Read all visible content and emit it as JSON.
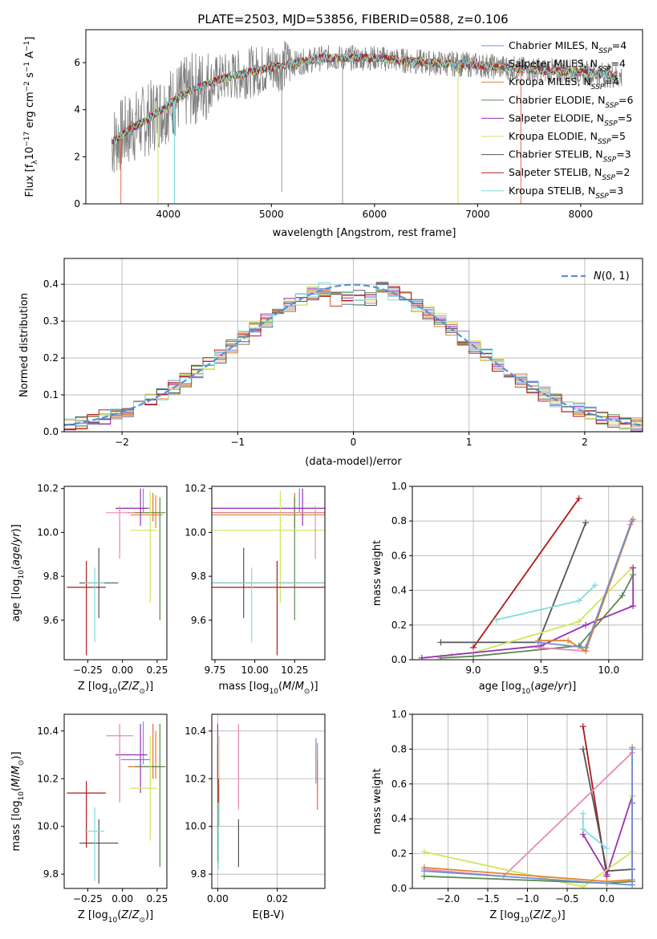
{
  "figure": {
    "title": "PLATE=2503, MJD=53856, FIBERID=0588, z=0.106"
  },
  "colors": {
    "Chabrier MILES": "#6f8fd8",
    "Salpeter MILES": "#e86b42",
    "Kroupa MILES": "#e0862a",
    "Chabrier ELODIE": "#5a8a4e",
    "Salpeter ELODIE": "#9b2fb5",
    "Kroupa ELODIE": "#cfe65a",
    "Chabrier STELIB": "#555555",
    "Salpeter STELIB": "#b01818",
    "Kroupa STELIB": "#7fdcdc",
    "pink": "#e888b8",
    "data_grey": "#808080",
    "normal": "#5b8fd6"
  },
  "chart_data": [
    {
      "id": "spectrum",
      "type": "line",
      "title": "PLATE=2503, MJD=53856, FIBERID=0588, z=0.106",
      "xlabel": "wavelength [Angstrom, rest frame]",
      "ylabel": "Flux [f_λ 10^-17 erg cm^-2 s^-1 A^-1]",
      "xlim": [
        3200,
        8600
      ],
      "ylim": [
        0,
        7.4
      ],
      "xticks": [
        "4000",
        "5000",
        "6000",
        "7000",
        "8000"
      ],
      "yticks": [
        "0",
        "2",
        "4",
        "6"
      ],
      "grid": false,
      "legend_position": "right",
      "legend": [
        {
          "name": "Chabrier MILES",
          "sub": "SSP",
          "n": "=4"
        },
        {
          "name": "Salpeter MILES",
          "sub": "SSP",
          "n": "=4"
        },
        {
          "name": "Kroupa MILES",
          "sub": "SSP",
          "n": "=4"
        },
        {
          "name": "Chabrier ELODIE",
          "sub": "SSP",
          "n": "=6"
        },
        {
          "name": "Salpeter ELODIE",
          "sub": "SSP",
          "n": "=5"
        },
        {
          "name": "Kroupa ELODIE",
          "sub": "SSP",
          "n": "=5"
        },
        {
          "name": "Chabrier STELIB",
          "sub": "SSP",
          "n": "=3"
        },
        {
          "name": "Salpeter STELIB",
          "sub": "SSP",
          "n": "=2"
        },
        {
          "name": "Kroupa STELIB",
          "sub": "SSP",
          "n": "=3"
        }
      ],
      "continuum": [
        [
          3450,
          2.6
        ],
        [
          3600,
          3.1
        ],
        [
          3800,
          3.6
        ],
        [
          4000,
          4.2
        ],
        [
          4200,
          4.8
        ],
        [
          4500,
          5.3
        ],
        [
          5000,
          5.8
        ],
        [
          5500,
          6.2
        ],
        [
          6000,
          6.2
        ],
        [
          6500,
          6.0
        ],
        [
          7000,
          5.9
        ],
        [
          7500,
          5.7
        ],
        [
          8000,
          5.6
        ],
        [
          8400,
          5.4
        ]
      ],
      "model_window": [
        3450,
        8400
      ],
      "spikes": [
        [
          3540,
          0
        ],
        [
          3900,
          0
        ],
        [
          4060,
          0
        ],
        [
          6810,
          0
        ],
        [
          7420,
          0
        ]
      ]
    },
    {
      "id": "residual-histogram",
      "type": "histogram",
      "xlabel": "(data-model)/error",
      "ylabel": "Normed distribution",
      "xlim": [
        -2.5,
        2.5
      ],
      "ylim": [
        0,
        0.47
      ],
      "xticks": [
        "−2",
        "−1",
        "0",
        "1",
        "2"
      ],
      "yticks": [
        "0.0",
        "0.1",
        "0.2",
        "0.3",
        "0.4"
      ],
      "grid": true,
      "legend_position": "top-right",
      "normal_label": "N(0, 1)",
      "bin_width": 0.1
    },
    {
      "id": "age-vs-Z",
      "type": "errorbar",
      "xlabel": "Z [log10(Z/Z⊙)]",
      "ylabel": "age [log10(age/yr)]",
      "xlim": [
        -0.42,
        0.32
      ],
      "ylim": [
        9.42,
        10.21
      ],
      "xticks": [
        "−0.25",
        "0.00",
        "0.25"
      ],
      "xtick_values": [
        -0.25,
        0.0,
        0.25
      ],
      "yticks": [
        "9.6",
        "9.8",
        "10.0",
        "10.2"
      ],
      "ytick_values": [
        9.6,
        9.8,
        10.0,
        10.2
      ],
      "grid": false
    },
    {
      "id": "age-vs-mass",
      "type": "errorbar",
      "xlabel": "mass [log10(M/M⊙)]",
      "ylabel": "",
      "xlim": [
        9.73,
        10.44
      ],
      "ylim": [
        9.42,
        10.21
      ],
      "xticks": [
        "9.75",
        "10.00",
        "10.25"
      ],
      "xtick_values": [
        9.75,
        10.0,
        10.25
      ],
      "yticks": [
        "9.6",
        "9.8",
        "10.0",
        "10.2"
      ],
      "ytick_values": [
        9.6,
        9.8,
        10.0,
        10.2
      ],
      "grid": false
    },
    {
      "id": "weight-vs-age",
      "type": "line",
      "xlabel": "age [log10(age/yr)]",
      "ylabel": "mass weight",
      "xlim": [
        8.55,
        10.25
      ],
      "ylim": [
        0,
        1.0
      ],
      "xticks": [
        "9.0",
        "9.5",
        "10.0"
      ],
      "xtick_values": [
        9.0,
        9.5,
        10.0
      ],
      "yticks": [
        "0.0",
        "0.2",
        "0.4",
        "0.6",
        "0.8",
        "1.0"
      ],
      "ytick_values": [
        0,
        0.2,
        0.4,
        0.6,
        0.8,
        1.0
      ],
      "grid": true
    },
    {
      "id": "mass-vs-Z",
      "type": "errorbar",
      "xlabel": "Z [log10(Z/Z⊙)]",
      "ylabel": "mass [log10(M/M⊙)]",
      "xlim": [
        -0.42,
        0.32
      ],
      "ylim": [
        9.74,
        10.47
      ],
      "xticks": [
        "−0.25",
        "0.00",
        "0.25"
      ],
      "xtick_values": [
        -0.25,
        0.0,
        0.25
      ],
      "yticks": [
        "9.8",
        "10.0",
        "10.2",
        "10.4"
      ],
      "ytick_values": [
        9.8,
        10.0,
        10.2,
        10.4
      ],
      "grid": false
    },
    {
      "id": "mass-vs-EBV",
      "type": "errorbar",
      "xlabel": "E(B-V)",
      "ylabel": "",
      "xlim": [
        -0.002,
        0.036
      ],
      "ylim": [
        9.74,
        10.47
      ],
      "xticks": [
        "0.00",
        "0.02"
      ],
      "xtick_values": [
        0.0,
        0.02
      ],
      "yticks": [
        "9.8",
        "10.0",
        "10.2",
        "10.4"
      ],
      "ytick_values": [
        9.8,
        10.0,
        10.2,
        10.4
      ],
      "grid": true
    },
    {
      "id": "weight-vs-Z",
      "type": "line",
      "xlabel": "Z [log10(Z/Z⊙)]",
      "ylabel": "mass weight",
      "xlim": [
        -2.45,
        0.45
      ],
      "ylim": [
        0,
        1.0
      ],
      "xticks": [
        "−2.0",
        "−1.5",
        "−1.0",
        "−0.5",
        "0.0"
      ],
      "xtick_values": [
        -2.0,
        -1.5,
        -1.0,
        -0.5,
        0.0
      ],
      "yticks": [
        "0.0",
        "0.2",
        "0.4",
        "0.6",
        "0.8",
        "1.0"
      ],
      "ytick_values": [
        0,
        0.2,
        0.4,
        0.6,
        0.8,
        1.0
      ],
      "grid": true
    }
  ],
  "fits": [
    {
      "name": "Chabrier MILES",
      "Z": [
        0.15,
        0.27,
        0.05
      ],
      "age": [
        10.11,
        10.2,
        10.09
      ],
      "mass": [
        10.28,
        10.44,
        10.26
      ],
      "ebv": [
        0.033,
        10.18,
        10.37
      ]
    },
    {
      "name": "Salpeter MILES",
      "Z": [
        0.22,
        0.3,
        0.08
      ],
      "age": [
        10.09,
        10.18,
        10.05
      ],
      "mass": [
        10.25,
        10.43,
        10.2
      ],
      "ebv": [
        0.0335,
        10.07,
        10.28
      ]
    },
    {
      "name": "Kroupa MILES",
      "Z": [
        0.24,
        0.3,
        0.1
      ],
      "age": [
        10.08,
        10.17,
        10.02
      ],
      "mass": [
        10.25,
        10.4,
        10.2
      ],
      "ebv": [
        0.0335,
        10.15,
        10.35
      ]
    },
    {
      "name": "Chabrier ELODIE",
      "Z": [
        0.27,
        0.3,
        0.06
      ],
      "age": [
        10.09,
        10.16,
        9.6
      ],
      "mass": [
        10.25,
        10.43,
        9.83
      ],
      "ebv": [
        0.0,
        9.85,
        10.35
      ]
    },
    {
      "name": "Salpeter ELODIE",
      "Z": [
        0.13,
        0.3,
        0.1
      ],
      "age": [
        10.11,
        10.2,
        10.03
      ],
      "mass": [
        10.3,
        10.43,
        10.14
      ],
      "ebv": [
        0.0,
        10.2,
        10.43
      ]
    },
    {
      "name": "Kroupa ELODIE",
      "Z": [
        0.2,
        0.24,
        0.05
      ],
      "age": [
        10.01,
        10.19,
        9.68
      ],
      "mass": [
        10.16,
        10.38,
        9.94
      ],
      "ebv": [
        0.0005,
        10.0,
        10.38
      ]
    },
    {
      "name": "Chabrier STELIB",
      "Z": [
        -0.17,
        0.05,
        0.1
      ],
      "age": [
        9.77,
        9.93,
        9.61
      ],
      "mass": [
        9.93,
        10.03,
        9.76
      ],
      "ebv": [
        0.007,
        9.83,
        10.03
      ]
    },
    {
      "name": "Salpeter STELIB",
      "Z": [
        -0.26,
        0.04,
        0.1
      ],
      "age": [
        9.75,
        9.87,
        9.44
      ],
      "mass": [
        10.14,
        10.19,
        9.91
      ],
      "ebv": [
        0.0002,
        10.0,
        10.2
      ]
    },
    {
      "name": "Kroupa STELIB",
      "Z": [
        -0.2,
        0.05,
        0.05
      ],
      "age": [
        9.77,
        9.84,
        9.5
      ],
      "mass": [
        9.98,
        10.08,
        9.77
      ],
      "ebv": [
        0.0002,
        9.82,
        10.1
      ]
    },
    {
      "name": "pink",
      "Z": [
        -0.02,
        0.3,
        0.07
      ],
      "age": [
        10.09,
        10.12,
        9.88
      ],
      "mass": [
        10.38,
        10.43,
        10.1
      ],
      "ebv": [
        0.007,
        10.07,
        10.43
      ]
    }
  ],
  "weights_age": [
    {
      "color": "#b01818",
      "pts": [
        [
          9.0,
          0.07
        ],
        [
          9.78,
          0.93
        ]
      ]
    },
    {
      "color": "#555555",
      "pts": [
        [
          8.76,
          0.1
        ],
        [
          9.48,
          0.1
        ],
        [
          9.83,
          0.79
        ]
      ]
    },
    {
      "color": "#7fdcdc",
      "pts": [
        [
          9.17,
          0.23
        ],
        [
          9.78,
          0.34
        ],
        [
          9.9,
          0.43
        ]
      ]
    },
    {
      "color": "#cfe65a",
      "pts": [
        [
          8.84,
          0.03
        ],
        [
          9.0,
          0.04
        ],
        [
          9.78,
          0.22
        ],
        [
          10.17,
          0.53
        ]
      ]
    },
    {
      "color": "#9b2fb5",
      "pts": [
        [
          8.62,
          0.01
        ],
        [
          9.5,
          0.08
        ],
        [
          9.83,
          0.2
        ],
        [
          10.18,
          0.31
        ],
        [
          10.18,
          0.53
        ]
      ]
    },
    {
      "color": "#5a8a4e",
      "pts": [
        [
          8.76,
          0.01
        ],
        [
          9.0,
          0.02
        ],
        [
          9.78,
          0.08
        ],
        [
          10.1,
          0.37
        ],
        [
          10.18,
          0.49
        ]
      ]
    },
    {
      "color": "#e888b8",
      "pts": [
        [
          9.48,
          0.07
        ],
        [
          9.83,
          0.05
        ],
        [
          10.16,
          0.78
        ]
      ]
    },
    {
      "color": "#e0862a",
      "pts": [
        [
          9.48,
          0.11
        ],
        [
          9.7,
          0.11
        ],
        [
          9.83,
          0.05
        ],
        [
          10.18,
          0.81
        ]
      ]
    },
    {
      "color": "#6f8fd8",
      "pts": [
        [
          9.48,
          0.1
        ],
        [
          9.83,
          0.07
        ],
        [
          10.17,
          0.8
        ]
      ]
    }
  ],
  "weights_Z": [
    {
      "color": "#b01818",
      "pts": [
        [
          -0.3,
          0.93
        ],
        [
          0.0,
          0.07
        ]
      ]
    },
    {
      "color": "#555555",
      "pts": [
        [
          -0.3,
          0.8
        ],
        [
          0.0,
          0.1
        ],
        [
          0.32,
          0.11
        ]
      ]
    },
    {
      "color": "#7fdcdc",
      "pts": [
        [
          -0.3,
          0.43
        ],
        [
          -0.3,
          0.34
        ],
        [
          0.0,
          0.23
        ]
      ]
    },
    {
      "color": "#9b2fb5",
      "pts": [
        [
          -0.3,
          0.31
        ],
        [
          0.0,
          0.08
        ],
        [
          0.32,
          0.53
        ]
      ]
    },
    {
      "color": "#e888b8",
      "pts": [
        [
          -2.3,
          0.11
        ],
        [
          -1.3,
          0.07
        ],
        [
          0.32,
          0.78
        ]
      ]
    },
    {
      "color": "#cfe65a",
      "pts": [
        [
          -2.3,
          0.21
        ],
        [
          -0.3,
          0.01
        ],
        [
          0.32,
          0.21
        ],
        [
          0.32,
          0.53
        ]
      ]
    },
    {
      "color": "#5a8a4e",
      "pts": [
        [
          -2.3,
          0.07
        ],
        [
          0.0,
          0.03
        ],
        [
          0.32,
          0.04
        ],
        [
          0.32,
          0.49
        ]
      ]
    },
    {
      "color": "#e0862a",
      "pts": [
        [
          -2.3,
          0.12
        ],
        [
          0.0,
          0.04
        ],
        [
          0.32,
          0.05
        ],
        [
          0.32,
          0.81
        ]
      ]
    },
    {
      "color": "#6f8fd8",
      "pts": [
        [
          -2.3,
          0.1
        ],
        [
          0.32,
          0.02
        ],
        [
          0.32,
          0.8
        ]
      ]
    }
  ]
}
